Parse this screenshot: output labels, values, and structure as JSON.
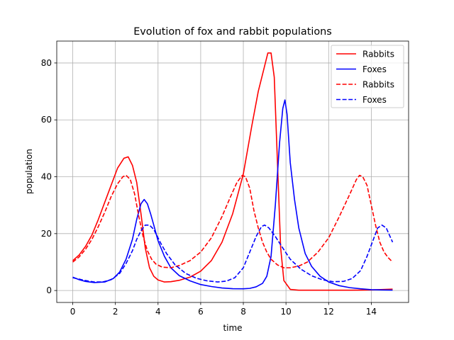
{
  "chart_data": {
    "type": "line",
    "title": "Evolution of fox and rabbit populations",
    "xlabel": "time",
    "ylabel": "population",
    "xlim": [
      -0.75,
      15.75
    ],
    "ylim": [
      -4.2,
      87.7
    ],
    "xticks": [
      0,
      2,
      4,
      6,
      8,
      10,
      12,
      14
    ],
    "yticks": [
      0,
      20,
      40,
      60,
      80
    ],
    "grid": true,
    "legend_position": "top-right",
    "series": [
      {
        "name": "Rabbits",
        "color": "#ff0000",
        "linestyle": "solid",
        "x": [
          0,
          0.3,
          0.6,
          0.9,
          1.2,
          1.5,
          1.8,
          2.1,
          2.4,
          2.6,
          2.8,
          3.0,
          3.2,
          3.4,
          3.6,
          3.8,
          4.0,
          4.3,
          4.6,
          5.0,
          5.5,
          6.0,
          6.5,
          7.0,
          7.5,
          8.0,
          8.4,
          8.7,
          9.0,
          9.15,
          9.3,
          9.45,
          9.6,
          9.75,
          9.9,
          10.2,
          10.6,
          11.0,
          12.0,
          13.0,
          14.0,
          15.0
        ],
        "y": [
          10.5,
          12.5,
          15.5,
          19.5,
          25,
          31,
          37,
          43,
          46.5,
          47,
          44,
          38,
          27,
          15,
          8,
          5,
          3.7,
          3,
          3.1,
          3.6,
          4.7,
          6.8,
          10.5,
          17,
          27,
          41,
          58,
          70,
          79,
          83.5,
          83.5,
          75,
          45,
          15,
          3.5,
          0.4,
          0.1,
          0.1,
          0.1,
          0.1,
          0.2,
          0.5
        ]
      },
      {
        "name": "Foxes",
        "color": "#0000ff",
        "linestyle": "solid",
        "x": [
          0,
          0.3,
          0.6,
          1.0,
          1.5,
          1.9,
          2.2,
          2.5,
          2.8,
          3.0,
          3.2,
          3.35,
          3.5,
          3.65,
          3.8,
          4.0,
          4.3,
          4.6,
          5.0,
          5.5,
          6.0,
          6.5,
          7.0,
          7.5,
          8.0,
          8.3,
          8.6,
          8.9,
          9.1,
          9.3,
          9.5,
          9.7,
          9.85,
          9.95,
          10.05,
          10.2,
          10.4,
          10.6,
          10.9,
          11.2,
          11.6,
          12.0,
          12.5,
          13.0,
          13.5,
          14.0,
          14.5,
          15.0
        ],
        "y": [
          4.7,
          3.8,
          3.2,
          2.8,
          3.0,
          4.2,
          6.5,
          11,
          18,
          25,
          30.5,
          32,
          30.5,
          27,
          23,
          17.5,
          12,
          8,
          5.2,
          3.4,
          2.1,
          1.4,
          0.9,
          0.65,
          0.6,
          0.75,
          1.3,
          2.5,
          5,
          12,
          30,
          52,
          64,
          67,
          62,
          45,
          32,
          22,
          13,
          8.5,
          5,
          3,
          1.7,
          1,
          0.6,
          0.3,
          0.2,
          0.15
        ]
      },
      {
        "name": "Rabbits",
        "color": "#ff0000",
        "linestyle": "dashed",
        "x": [
          0,
          0.3,
          0.6,
          0.9,
          1.2,
          1.5,
          1.8,
          2.1,
          2.35,
          2.5,
          2.7,
          2.9,
          3.1,
          3.3,
          3.5,
          3.7,
          3.9,
          4.2,
          4.6,
          5.0,
          5.5,
          6.0,
          6.5,
          7.0,
          7.4,
          7.7,
          7.95,
          8.1,
          8.3,
          8.5,
          8.7,
          8.9,
          9.1,
          9.3,
          9.6,
          9.9,
          10.2,
          10.6,
          11.0,
          11.5,
          12.0,
          12.5,
          13.0,
          13.3,
          13.45,
          13.6,
          13.8,
          14.0,
          14.2,
          14.4,
          14.6,
          14.8,
          15.0
        ],
        "y": [
          10,
          11.8,
          14.5,
          18,
          22.5,
          27.5,
          33,
          37.5,
          40,
          40.5,
          39,
          34,
          26,
          19,
          14,
          11,
          9.3,
          8.2,
          8,
          8.8,
          10.5,
          13.5,
          18.5,
          26,
          33,
          38,
          40.5,
          40,
          36,
          28,
          22,
          17,
          13.5,
          11,
          9,
          8,
          8,
          8.6,
          10,
          13.5,
          18.5,
          26,
          34,
          39,
          40.5,
          40,
          37,
          30,
          23,
          17,
          13.5,
          11.5,
          10
        ]
      },
      {
        "name": "Foxes",
        "color": "#0000ff",
        "linestyle": "dashed",
        "x": [
          0,
          0.3,
          0.6,
          1.0,
          1.4,
          1.8,
          2.2,
          2.5,
          2.8,
          3.0,
          3.2,
          3.4,
          3.6,
          3.8,
          4.1,
          4.4,
          4.8,
          5.3,
          5.8,
          6.3,
          6.8,
          7.2,
          7.6,
          8.0,
          8.3,
          8.6,
          8.85,
          9.0,
          9.2,
          9.5,
          9.8,
          10.2,
          10.7,
          11.2,
          11.7,
          12.2,
          12.7,
          13.1,
          13.5,
          13.8,
          14.1,
          14.3,
          14.5,
          14.7,
          15.0
        ],
        "y": [
          4.5,
          4,
          3.5,
          3,
          3,
          3.8,
          6,
          9.5,
          14,
          18,
          21,
          23,
          23,
          21.5,
          17,
          13,
          9,
          6,
          4.3,
          3.4,
          3,
          3.3,
          4.5,
          8,
          13.5,
          19,
          22.5,
          23,
          22,
          19,
          15.5,
          11,
          7.5,
          5.2,
          3.8,
          3.1,
          3.2,
          4.2,
          7,
          12,
          18,
          22,
          23,
          22,
          17
        ]
      }
    ]
  }
}
